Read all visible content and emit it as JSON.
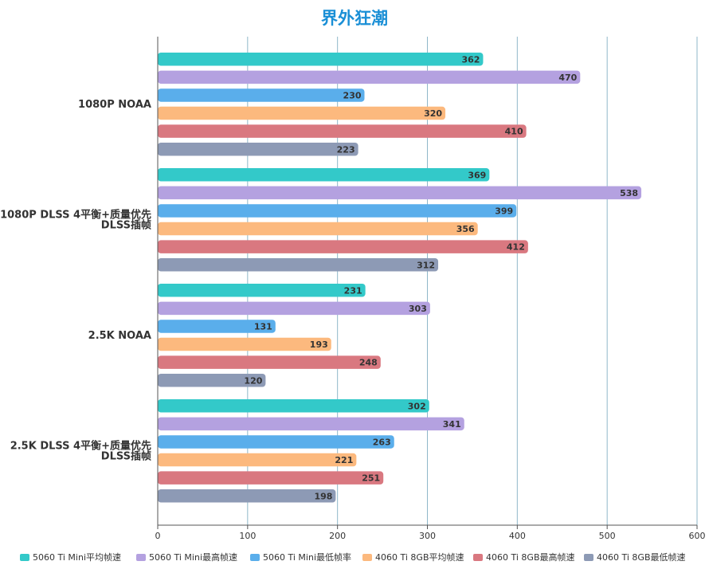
{
  "chart_data": {
    "type": "bar",
    "orientation": "horizontal",
    "title": "界外狂潮",
    "categories": [
      "1080P NOAA",
      "1080P DLSS 4平衡+质量优先\nDLSS插帧",
      "2.5K NOAA",
      "2.5K DLSS 4平衡+质量优先\nDLSS插帧"
    ],
    "series": [
      {
        "name": "5060 Ti Mini平均帧速",
        "color": "#33c9c9",
        "values": [
          362,
          369,
          231,
          302
        ]
      },
      {
        "name": "5060 Ti Mini最高帧速",
        "color": "#b4a1e0",
        "values": [
          470,
          538,
          303,
          341
        ]
      },
      {
        "name": "5060 Ti Mini最低帧率",
        "color": "#5aaeeb",
        "values": [
          230,
          399,
          131,
          263
        ]
      },
      {
        "name": "4060 Ti 8GB平均帧速",
        "color": "#fcb97e",
        "values": [
          320,
          356,
          193,
          221
        ]
      },
      {
        "name": "4060 Ti 8GB最高帧速",
        "color": "#d97880",
        "values": [
          410,
          412,
          248,
          251
        ]
      },
      {
        "name": "4060 Ti 8GB最低帧速",
        "color": "#8d9ab5",
        "values": [
          223,
          312,
          120,
          198
        ]
      }
    ],
    "xlim": [
      0,
      600
    ],
    "xticks": [
      0,
      100,
      200,
      300,
      400,
      500,
      600
    ],
    "grid": true,
    "legend_position": "bottom"
  }
}
